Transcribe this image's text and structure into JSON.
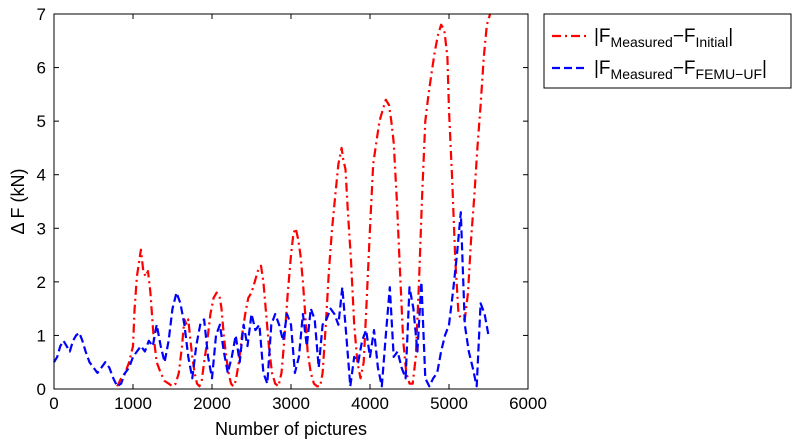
{
  "chart_data": {
    "type": "line",
    "title": "",
    "xlabel": "Number of pictures",
    "ylabel": "Δ F (kN)",
    "xlim": [
      0,
      6000
    ],
    "ylim": [
      0,
      7
    ],
    "x_ticks": [
      "0",
      "1000",
      "2000",
      "3000",
      "4000",
      "5000",
      "6000"
    ],
    "y_ticks": [
      "0",
      "1",
      "2",
      "3",
      "4",
      "5",
      "6",
      "7"
    ],
    "grid": false,
    "legend_position": "outside-top-right",
    "series": [
      {
        "name": "|F_Measured − F_Initial|",
        "legend": {
          "prefix": "|F",
          "sub1": "Measured",
          "mid": "−F",
          "sub2": "Initial",
          "suffix": "|"
        },
        "color": "#ff0000",
        "style": "dash-dot",
        "x": [
          800,
          850,
          900,
          950,
          1000,
          1020,
          1050,
          1080,
          1100,
          1130,
          1160,
          1190,
          1220,
          1260,
          1300,
          1350,
          1400,
          1450,
          1500,
          1540,
          1580,
          1620,
          1650,
          1680,
          1700,
          1720,
          1750,
          1780,
          1810,
          1840,
          1870,
          1900,
          1940,
          1980,
          2020,
          2060,
          2100,
          2120,
          2150,
          2180,
          2210,
          2240,
          2270,
          2300,
          2340,
          2380,
          2420,
          2460,
          2500,
          2540,
          2580,
          2620,
          2650,
          2680,
          2720,
          2760,
          2800,
          2840,
          2880,
          2920,
          2960,
          3000,
          3030,
          3060,
          3090,
          3120,
          3150,
          3180,
          3210,
          3250,
          3290,
          3330,
          3370,
          3400,
          3440,
          3480,
          3520,
          3560,
          3600,
          3640,
          3660,
          3690,
          3720,
          3760,
          3800,
          3840,
          3880,
          3920,
          3960,
          4000,
          4040,
          4080,
          4120,
          4160,
          4200,
          4240,
          4270,
          4300,
          4340,
          4380,
          4420,
          4460,
          4500,
          4540,
          4580,
          4620,
          4660,
          4700,
          4740,
          4780,
          4820,
          4860,
          4900,
          4940,
          4980,
          5000,
          5040,
          5080,
          5120,
          5160,
          5200,
          5240,
          5280,
          5320,
          5360,
          5400,
          5440,
          5480,
          5520
        ],
        "y": [
          0.05,
          0.2,
          0.3,
          0.5,
          0.8,
          1.5,
          2.1,
          2.4,
          2.6,
          2.2,
          2.1,
          2.2,
          1.8,
          1.0,
          0.5,
          0.3,
          0.15,
          0.1,
          0.05,
          0.1,
          0.3,
          0.8,
          1.3,
          1.2,
          1.3,
          1.0,
          0.6,
          0.3,
          0.1,
          0.05,
          0.15,
          0.5,
          0.9,
          1.4,
          1.7,
          1.8,
          1.7,
          1.5,
          1.0,
          0.6,
          0.3,
          0.1,
          0.05,
          0.15,
          0.5,
          1.0,
          1.4,
          1.7,
          1.8,
          2.0,
          2.2,
          2.3,
          2.0,
          1.5,
          0.8,
          0.3,
          0.1,
          0.05,
          0.3,
          1.0,
          1.8,
          2.5,
          2.9,
          3.0,
          2.8,
          2.5,
          2.0,
          1.4,
          0.7,
          0.3,
          0.1,
          0.05,
          0.05,
          0.3,
          1.2,
          2.2,
          3.0,
          3.6,
          4.2,
          4.5,
          4.3,
          4.1,
          3.3,
          2.4,
          1.2,
          0.5,
          0.2,
          0.5,
          1.7,
          3.0,
          4.2,
          4.6,
          5.0,
          5.2,
          5.4,
          5.3,
          5.0,
          4.6,
          3.5,
          2.2,
          0.9,
          0.3,
          0.1,
          0.1,
          0.6,
          2.0,
          3.6,
          5.0,
          5.5,
          5.9,
          6.3,
          6.6,
          6.8,
          6.7,
          6.2,
          5.2,
          3.9,
          2.4,
          1.4,
          1.3,
          1.3,
          1.8,
          2.8,
          3.6,
          4.5,
          5.3,
          6.2,
          6.8,
          7.0
        ]
      },
      {
        "name": "|F_Measured − F_FEMU-UF|",
        "legend": {
          "prefix": "|F",
          "sub1": "Measured",
          "mid": "−F",
          "sub2": "FEMU−UF",
          "suffix": "|"
        },
        "color": "#0000ff",
        "style": "dashed",
        "x": [
          0,
          40,
          80,
          120,
          160,
          200,
          240,
          280,
          320,
          360,
          400,
          450,
          500,
          550,
          600,
          650,
          700,
          750,
          800,
          850,
          900,
          950,
          1000,
          1050,
          1100,
          1150,
          1200,
          1250,
          1300,
          1350,
          1400,
          1450,
          1500,
          1550,
          1600,
          1650,
          1700,
          1750,
          1800,
          1850,
          1900,
          1950,
          2000,
          2050,
          2100,
          2150,
          2200,
          2250,
          2300,
          2350,
          2400,
          2450,
          2500,
          2550,
          2600,
          2650,
          2700,
          2750,
          2800,
          2850,
          2900,
          2950,
          3000,
          3050,
          3100,
          3150,
          3200,
          3250,
          3300,
          3350,
          3400,
          3450,
          3500,
          3550,
          3600,
          3650,
          3700,
          3750,
          3800,
          3850,
          3900,
          3950,
          4000,
          4050,
          4100,
          4150,
          4200,
          4250,
          4300,
          4350,
          4400,
          4450,
          4500,
          4550,
          4600,
          4650,
          4700,
          4750,
          4800,
          4850,
          4900,
          4950,
          5000,
          5050,
          5100,
          5150,
          5200,
          5250,
          5300,
          5350,
          5400,
          5450,
          5500
        ],
        "y": [
          0.5,
          0.6,
          0.8,
          0.9,
          0.8,
          0.7,
          0.9,
          1.0,
          1.05,
          0.9,
          0.7,
          0.5,
          0.4,
          0.3,
          0.4,
          0.5,
          0.4,
          0.2,
          0.05,
          0.1,
          0.3,
          0.4,
          0.6,
          0.7,
          0.8,
          0.7,
          0.9,
          0.8,
          1.2,
          0.8,
          0.5,
          0.9,
          1.5,
          1.8,
          1.6,
          1.2,
          0.6,
          0.2,
          0.8,
          1.2,
          1.3,
          0.6,
          0.2,
          1.0,
          1.2,
          0.7,
          0.3,
          0.6,
          1.0,
          0.5,
          1.2,
          0.8,
          1.4,
          1.1,
          1.2,
          0.3,
          0.1,
          1.2,
          1.4,
          1.2,
          0.9,
          1.4,
          1.2,
          0.3,
          0.6,
          1.4,
          0.8,
          1.5,
          1.3,
          0.4,
          1.2,
          1.3,
          1.5,
          1.4,
          1.2,
          1.9,
          1.0,
          0.05,
          0.6,
          0.5,
          0.9,
          1.1,
          0.6,
          1.1,
          0.4,
          0.05,
          1.0,
          1.9,
          0.6,
          0.7,
          0.4,
          0.2,
          1.9,
          1.5,
          0.7,
          2.0,
          0.2,
          0.05,
          0.2,
          0.3,
          0.7,
          1.0,
          1.2,
          1.8,
          2.5,
          3.3,
          1.2,
          0.7,
          0.4,
          0.05,
          1.6,
          1.4,
          1.0
        ]
      }
    ]
  }
}
